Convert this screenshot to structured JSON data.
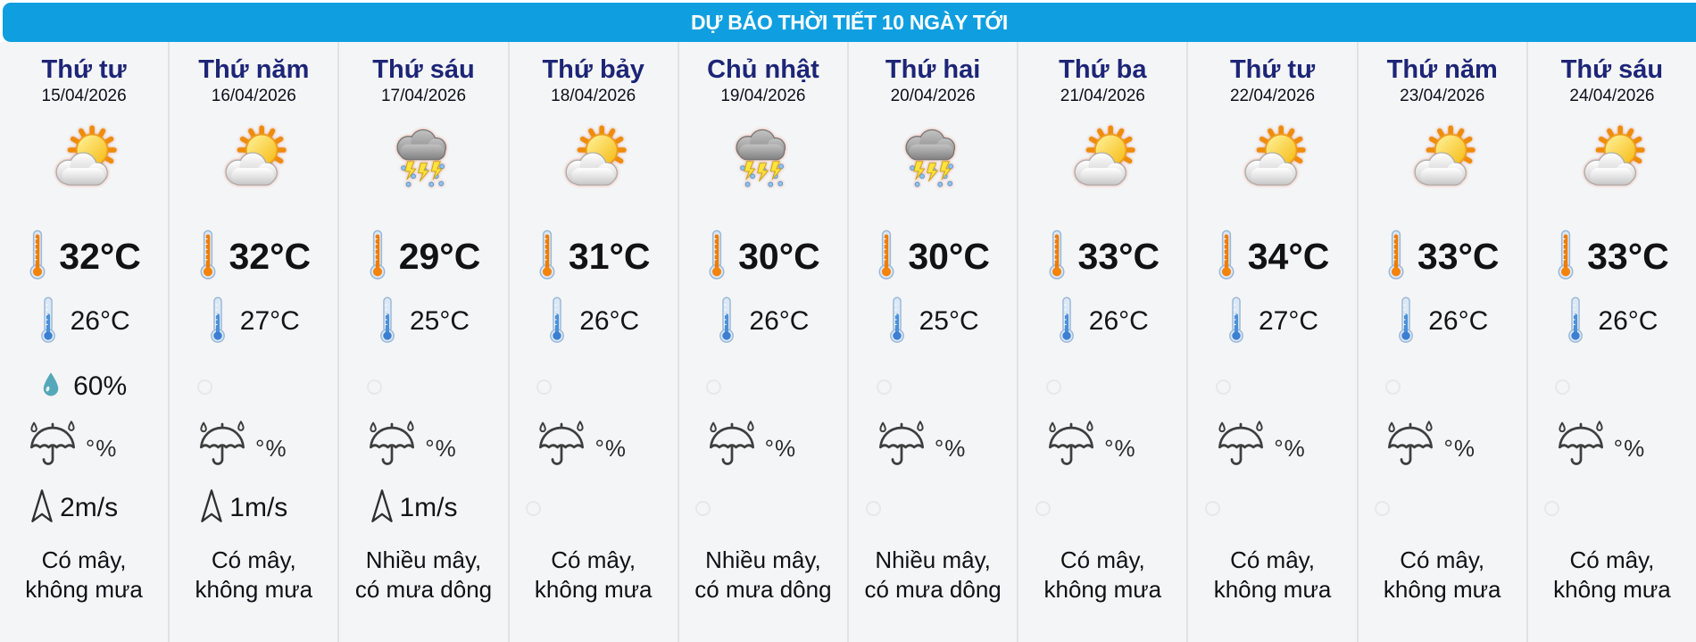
{
  "header": {
    "title": "DỰ BÁO THỜI TIẾT 10 NGÀY TỚI",
    "bg_color": "#0f9fe0",
    "text_color": "#ffffff"
  },
  "colors": {
    "day_name": "#1d2577",
    "column_bg": "#f4f5f6",
    "divider": "#e1e2e4",
    "droplet": "#55a8ba",
    "high_thermometer": "#f07c00",
    "low_thermometer": "#4a90d9"
  },
  "columns": [
    {
      "day": "Thứ tư",
      "date": "15/04/2026",
      "icon": "sun-cloud",
      "high": "32°C",
      "low": "26°C",
      "humidity": "60%",
      "rain_label": "°%",
      "wind": "2m/s",
      "desc_line1": "Có mây,",
      "desc_line2": "không mưa"
    },
    {
      "day": "Thứ năm",
      "date": "16/04/2026",
      "icon": "sun-cloud",
      "high": "32°C",
      "low": "27°C",
      "humidity": null,
      "rain_label": "°%",
      "wind": "1m/s",
      "desc_line1": "Có mây,",
      "desc_line2": "không mưa"
    },
    {
      "day": "Thứ sáu",
      "date": "17/04/2026",
      "icon": "storm-rain",
      "high": "29°C",
      "low": "25°C",
      "humidity": null,
      "rain_label": "°%",
      "wind": "1m/s",
      "desc_line1": "Nhiều mây,",
      "desc_line2": "có mưa dông"
    },
    {
      "day": "Thứ bảy",
      "date": "18/04/2026",
      "icon": "sun-cloud",
      "high": "31°C",
      "low": "26°C",
      "humidity": null,
      "rain_label": "°%",
      "wind": null,
      "desc_line1": "Có mây,",
      "desc_line2": "không mưa"
    },
    {
      "day": "Chủ nhật",
      "date": "19/04/2026",
      "icon": "storm-rain",
      "high": "30°C",
      "low": "26°C",
      "humidity": null,
      "rain_label": "°%",
      "wind": null,
      "desc_line1": "Nhiều mây,",
      "desc_line2": "có mưa dông"
    },
    {
      "day": "Thứ hai",
      "date": "20/04/2026",
      "icon": "storm-rain",
      "high": "30°C",
      "low": "25°C",
      "humidity": null,
      "rain_label": "°%",
      "wind": null,
      "desc_line1": "Nhiều mây,",
      "desc_line2": "có mưa dông"
    },
    {
      "day": "Thứ ba",
      "date": "21/04/2026",
      "icon": "sun-cloud",
      "high": "33°C",
      "low": "26°C",
      "humidity": null,
      "rain_label": "°%",
      "wind": null,
      "desc_line1": "Có mây,",
      "desc_line2": "không mưa"
    },
    {
      "day": "Thứ tư",
      "date": "22/04/2026",
      "icon": "sun-cloud",
      "high": "34°C",
      "low": "27°C",
      "humidity": null,
      "rain_label": "°%",
      "wind": null,
      "desc_line1": "Có mây,",
      "desc_line2": "không mưa"
    },
    {
      "day": "Thứ năm",
      "date": "23/04/2026",
      "icon": "sun-cloud",
      "high": "33°C",
      "low": "26°C",
      "humidity": null,
      "rain_label": "°%",
      "wind": null,
      "desc_line1": "Có mây,",
      "desc_line2": "không mưa"
    },
    {
      "day": "Thứ sáu",
      "date": "24/04/2026",
      "icon": "sun-cloud",
      "high": "33°C",
      "low": "26°C",
      "humidity": null,
      "rain_label": "°%",
      "wind": null,
      "desc_line1": "Có mây,",
      "desc_line2": "không mưa"
    }
  ]
}
